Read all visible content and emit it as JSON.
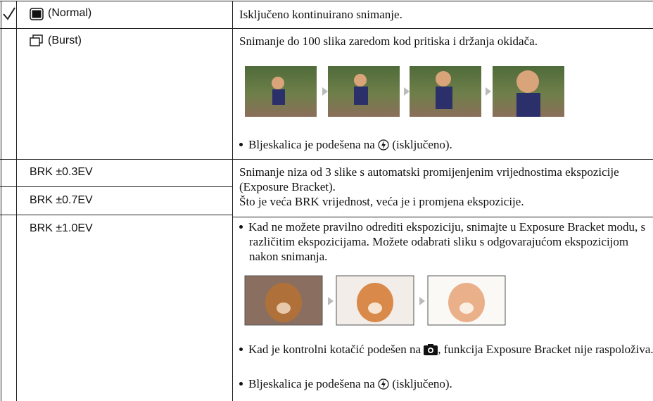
{
  "table": {
    "rows": [
      {
        "option": "(Normal)",
        "text": "Isključeno kontinuirano snimanje."
      },
      {
        "option": "(Burst)",
        "text": "Snimanje do 100 slika zaredom kod pritiska i držanja okidača.",
        "note_before": "Bljeskalica je podešena na",
        "note_after": "(isključeno)."
      },
      {
        "option": "BRK ±0.3EV"
      },
      {
        "option": "BRK ±0.7EV"
      },
      {
        "option": "BRK ±1.0EV"
      }
    ]
  },
  "bracket": {
    "text1": "Snimanje niza od 3 slike s automatski promijenjenim vrijednostima ekspozicije (Exposure Bracket).",
    "text2": "Što je veća BRK vrijednost, veća je i promjena ekspozicije.",
    "bullet1": "Kad ne možete pravilno odrediti ekspoziciju, snimajte u Exposure Bracket modu, s različitim ekspozicijama. Možete odabrati sliku s odgovarajućom ekspozicijom nakon snimanja.",
    "bullet2_before": "Kad je kontrolni kotačić podešen na",
    "bullet2_after": ", funkcija Exposure Bracket nije raspoloživa.",
    "bullet3_before": "Bljeskalica je podešena na",
    "bullet3_after": "(isključeno)."
  }
}
